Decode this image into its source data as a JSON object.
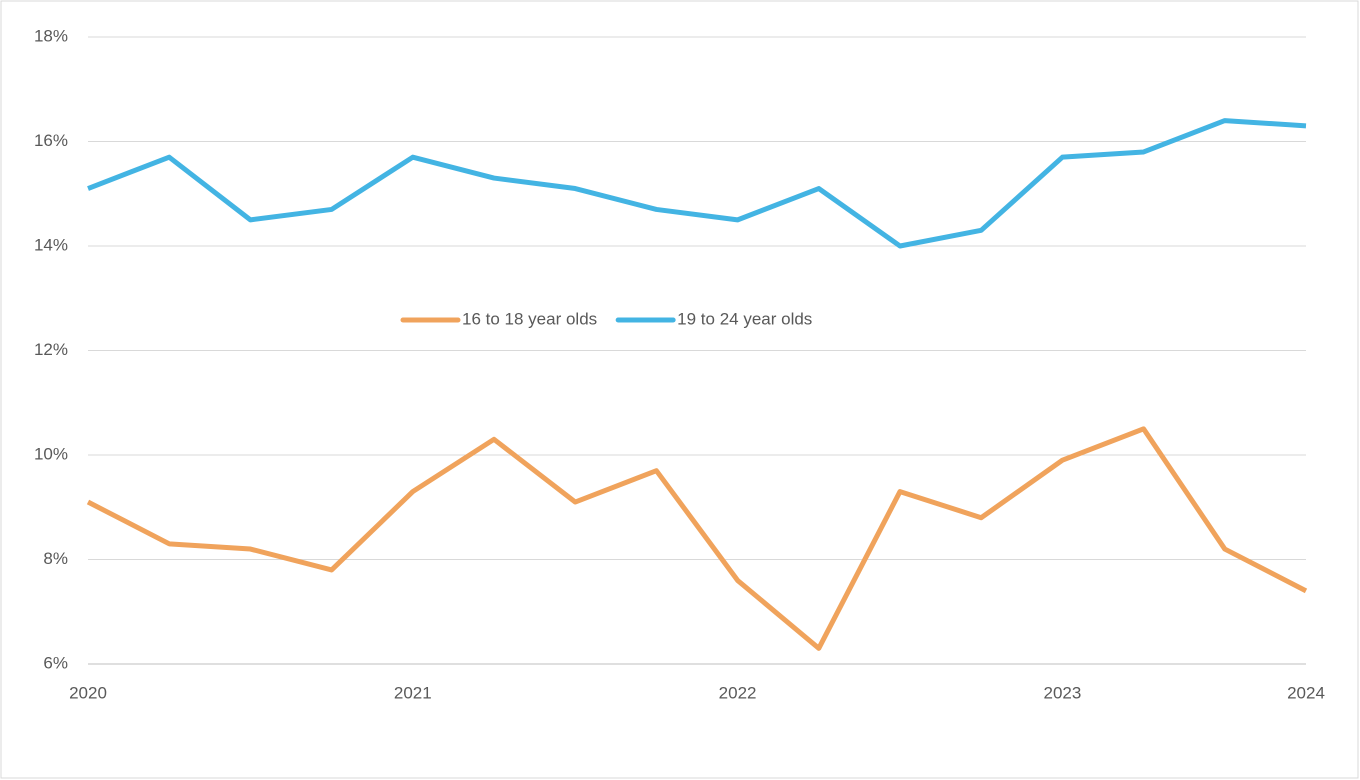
{
  "chart_data": {
    "type": "line",
    "categories": [
      "2020",
      null,
      null,
      null,
      "2021",
      null,
      null,
      null,
      "2022",
      null,
      null,
      null,
      "2023",
      null,
      null,
      "2024"
    ],
    "series": [
      {
        "name": "16 to 18 year olds",
        "color": "#f0a35c",
        "values": [
          9.1,
          8.3,
          8.2,
          7.8,
          9.3,
          10.3,
          9.1,
          9.7,
          7.6,
          6.3,
          9.3,
          8.8,
          9.9,
          10.5,
          8.2,
          7.4
        ]
      },
      {
        "name": "19 to 24 year olds",
        "color": "#43b4e3",
        "values": [
          15.1,
          15.7,
          14.5,
          14.7,
          15.7,
          15.3,
          15.1,
          14.7,
          14.5,
          15.1,
          14.0,
          14.3,
          15.7,
          15.8,
          16.4,
          16.3
        ]
      }
    ],
    "ylim": [
      6,
      18
    ],
    "yticks": [
      {
        "value": 6,
        "label": "6%"
      },
      {
        "value": 8,
        "label": "8%"
      },
      {
        "value": 10,
        "label": "10%"
      },
      {
        "value": 12,
        "label": "12%"
      },
      {
        "value": 14,
        "label": "14%"
      },
      {
        "value": 16,
        "label": "16%"
      },
      {
        "value": 18,
        "label": "18%"
      }
    ],
    "grid": true,
    "legend": "center"
  }
}
